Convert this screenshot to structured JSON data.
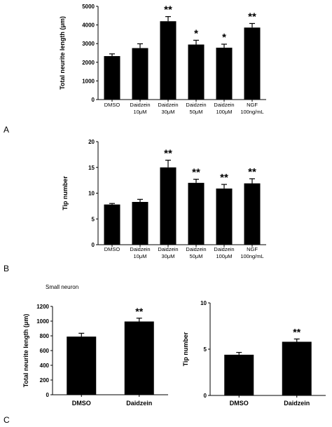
{
  "panels": {
    "a": "A",
    "b": "B",
    "c": "C"
  },
  "subtitle_c": "Small neuron",
  "chart_data": [
    {
      "type": "bar",
      "ylabel": "Total neurite length (μm)",
      "ylim": [
        0,
        5000
      ],
      "yticks": [
        0,
        1000,
        2000,
        3000,
        4000,
        5000
      ],
      "categories": [
        "DMSO",
        "Daidzein 10μM",
        "Daidzein 30μM",
        "Daidzein 50μM",
        "Daidzein 100μM",
        "NGF 100ng/mL"
      ],
      "category_lines": [
        [
          "DMSO"
        ],
        [
          "Daidzein",
          "10μM"
        ],
        [
          "Daidzein",
          "30μM"
        ],
        [
          "Daidzein",
          "50μM"
        ],
        [
          "Daidzein",
          "100μM"
        ],
        [
          "NGF",
          "100ng/mL"
        ]
      ],
      "values": [
        2330,
        2760,
        4200,
        2950,
        2780,
        3860
      ],
      "errors": [
        120,
        230,
        250,
        230,
        190,
        220
      ],
      "significance": [
        "",
        "",
        "**",
        "*",
        "*",
        "**"
      ],
      "color": "#000000"
    },
    {
      "type": "bar",
      "ylabel": "Tip number",
      "ylim": [
        0,
        20
      ],
      "yticks": [
        0,
        5,
        10,
        15,
        20
      ],
      "categories": [
        "DMSO",
        "Daidzein 10μM",
        "Daidzein 30μM",
        "Daidzein 50μM",
        "Daidzein 100μM",
        "NGF 100ng/mL"
      ],
      "category_lines": [
        [
          "DMSO"
        ],
        [
          "Daidzein",
          "10μM"
        ],
        [
          "Daidzein",
          "30μM"
        ],
        [
          "Daidzein",
          "50μM"
        ],
        [
          "Daidzein",
          "100μM"
        ],
        [
          "NGF",
          "100ng/mL"
        ]
      ],
      "values": [
        7.8,
        8.3,
        15.0,
        12.0,
        10.9,
        11.9
      ],
      "errors": [
        0.2,
        0.5,
        1.4,
        0.7,
        0.8,
        0.9
      ],
      "significance": [
        "",
        "",
        "**",
        "**",
        "**",
        "**"
      ],
      "color": "#000000"
    },
    {
      "type": "bar",
      "ylabel": "Total neurite length (μm)",
      "ylim": [
        0,
        1200
      ],
      "yticks": [
        0,
        200,
        400,
        600,
        800,
        1000,
        1200
      ],
      "categories": [
        "DMSO",
        "Daidzein"
      ],
      "category_lines": [
        [
          "DMSO"
        ],
        [
          "Daidzein"
        ]
      ],
      "values": [
        790,
        995
      ],
      "errors": [
        45,
        45
      ],
      "significance": [
        "",
        "**"
      ],
      "color": "#000000"
    },
    {
      "type": "bar",
      "ylabel": "Tip number",
      "ylim": [
        0,
        10
      ],
      "yticks": [
        0,
        5,
        10
      ],
      "categories": [
        "DMSO",
        "Daidzein"
      ],
      "category_lines": [
        [
          "DMSO"
        ],
        [
          "Daidzein"
        ]
      ],
      "values": [
        4.4,
        5.8
      ],
      "errors": [
        0.25,
        0.3
      ],
      "significance": [
        "",
        "**"
      ],
      "color": "#000000"
    }
  ]
}
